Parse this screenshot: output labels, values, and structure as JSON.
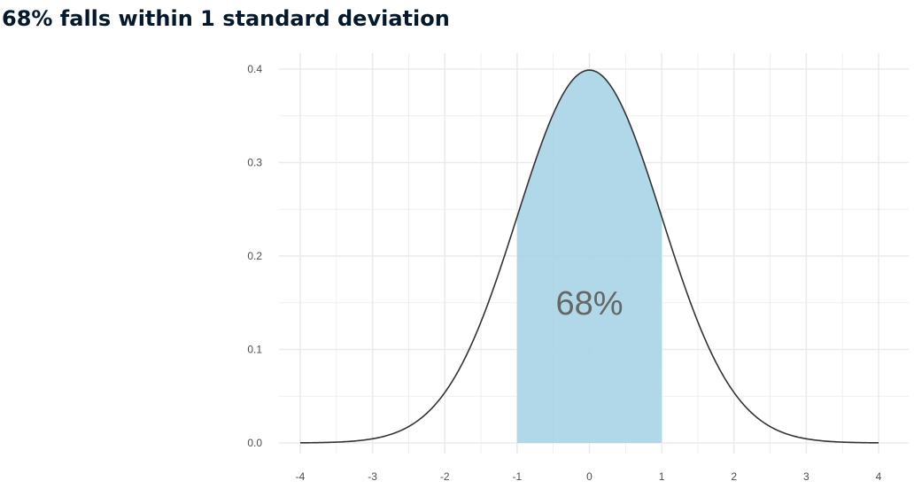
{
  "title": "68% falls within 1 standard deviation",
  "chart_data": {
    "type": "area",
    "distribution": "standard normal",
    "mean": 0,
    "sd": 1,
    "xlim": [
      -4,
      4
    ],
    "ylim": [
      0,
      0.4
    ],
    "x_ticks": [
      -4,
      -3,
      -2,
      -1,
      0,
      1,
      2,
      3,
      4
    ],
    "y_ticks": [
      0.0,
      0.1,
      0.2,
      0.3,
      0.4
    ],
    "x_tick_labels": [
      "-4",
      "-3",
      "-2",
      "-1",
      "0",
      "1",
      "2",
      "3",
      "4"
    ],
    "y_tick_labels": [
      "0.0",
      "0.1",
      "0.2",
      "0.3",
      "0.4"
    ],
    "shaded_range": [
      -1,
      1
    ],
    "annotation": {
      "text": "68%",
      "x": 0,
      "y": 0.15
    },
    "grid": true,
    "xlabel": "",
    "ylabel": "",
    "colors": {
      "fill": "#a8d4e5",
      "curve": "#333333",
      "grid": "#ebebeb",
      "annotation": "#666666",
      "title": "#05192d"
    }
  }
}
